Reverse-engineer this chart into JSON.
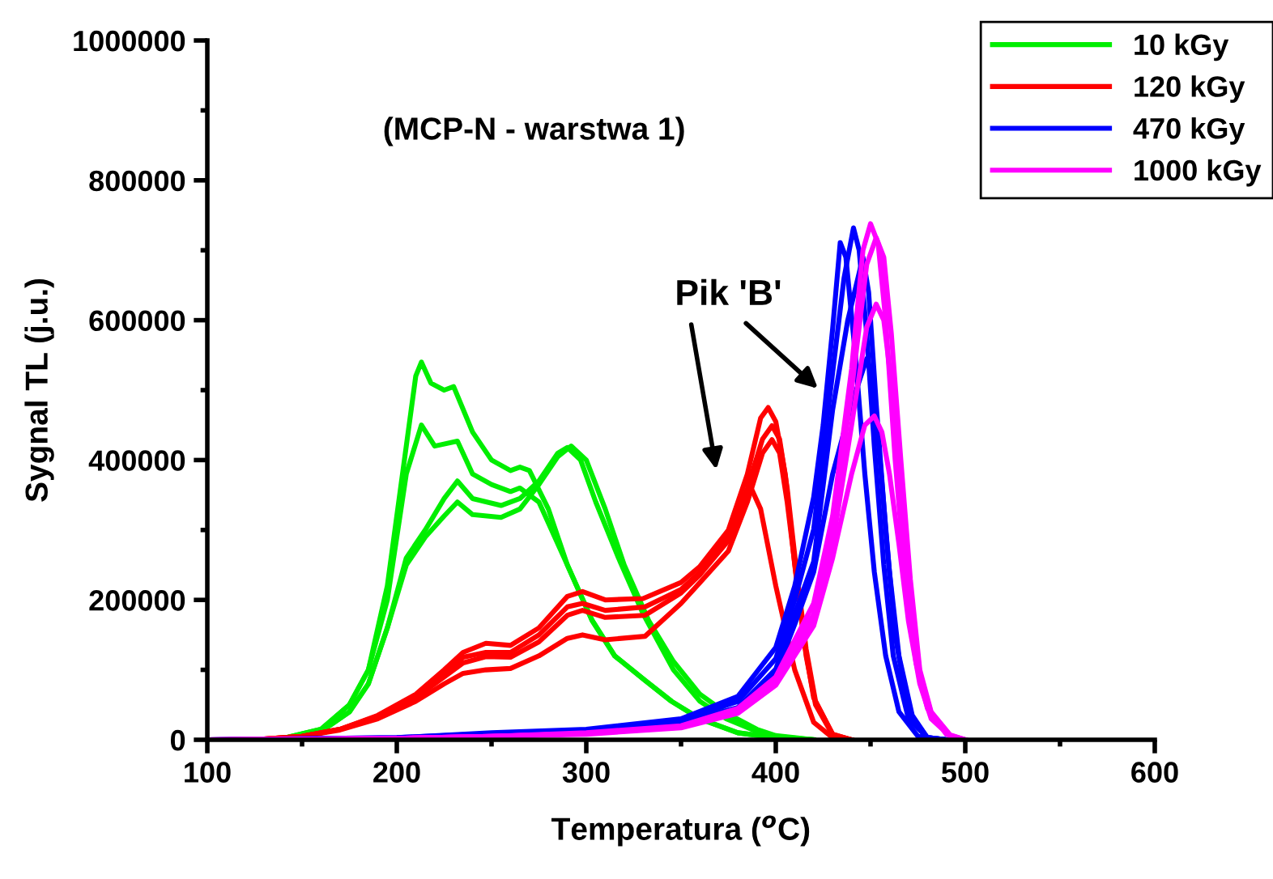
{
  "chart_data": {
    "type": "line",
    "xlabel": "Temperatura ($^{o}$C)",
    "ylabel": "Sygnal TL (j.u.)",
    "xlim": [
      100,
      600
    ],
    "xticks": [
      100,
      200,
      300,
      400,
      500,
      600
    ],
    "ylim": [
      0,
      1000000
    ],
    "yticks": [
      0,
      200000,
      400000,
      600000,
      800000,
      1000000
    ],
    "grid": false,
    "legend": "top right",
    "marker": "none",
    "line_style": "solid",
    "annotations": [
      "(MCP-N - warstwa 1)",
      "Pik 'B'"
    ],
    "series": [
      {
        "name": "10 kGy",
        "color": "#00ee00",
        "x": [
          120,
          140,
          160,
          175,
          185,
          195,
          205,
          210,
          213,
          218,
          225,
          230,
          240,
          250,
          260,
          265,
          270,
          280,
          290,
          303,
          315,
          331,
          345,
          360,
          380,
          400,
          420
        ],
        "values": [
          0,
          2000,
          15000,
          50000,
          100000,
          220000,
          420000,
          520000,
          540000,
          510000,
          500000,
          505000,
          440000,
          400000,
          385000,
          390000,
          385000,
          330000,
          250000,
          171000,
          120000,
          85000,
          55000,
          30000,
          10000,
          3000,
          0
        ]
      },
      {
        "color": "#00ee00",
        "x": [
          120,
          140,
          160,
          175,
          185,
          195,
          205,
          213,
          220,
          232,
          240,
          250,
          260,
          265,
          275,
          290,
          303,
          315,
          331,
          345,
          360,
          380,
          400,
          420
        ],
        "values": [
          0,
          2000,
          15000,
          50000,
          100000,
          200000,
          380000,
          450000,
          420000,
          427000,
          380000,
          365000,
          355000,
          360000,
          340000,
          250000,
          171000,
          120000,
          85000,
          55000,
          30000,
          10000,
          3000,
          0
        ]
      },
      {
        "color": "#00ee00",
        "x": [
          120,
          140,
          160,
          175,
          185,
          195,
          205,
          215,
          225,
          232,
          240,
          255,
          265,
          275,
          285,
          290,
          297,
          305,
          317,
          330,
          346,
          360,
          374,
          390,
          400,
          420
        ],
        "values": [
          0,
          2000,
          12000,
          40000,
          80000,
          160000,
          260000,
          300000,
          345000,
          370000,
          345000,
          335000,
          345000,
          370000,
          410000,
          418000,
          400000,
          340000,
          260000,
          180000,
          100000,
          55000,
          30000,
          12000,
          5000,
          0
        ]
      },
      {
        "color": "#00ee00",
        "x": [
          120,
          140,
          160,
          175,
          185,
          195,
          205,
          215,
          225,
          232,
          240,
          255,
          265,
          275,
          285,
          292,
          300,
          310,
          320,
          333,
          346,
          360,
          374,
          390,
          400,
          420
        ],
        "values": [
          0,
          2000,
          12000,
          40000,
          80000,
          160000,
          250000,
          290000,
          320000,
          340000,
          322000,
          318000,
          330000,
          365000,
          405000,
          420000,
          400000,
          330000,
          250000,
          170000,
          112000,
          65000,
          38000,
          15000,
          6000,
          0
        ]
      },
      {
        "name": "120 kGy",
        "color": "#ff0000",
        "x": [
          110,
          130,
          150,
          170,
          190,
          210,
          225,
          235,
          247,
          260,
          275,
          290,
          298,
          310,
          330,
          350,
          360,
          375,
          385,
          392,
          396,
          400,
          405,
          410,
          415,
          420,
          430,
          440
        ],
        "values": [
          0,
          1000,
          5000,
          15000,
          35000,
          65000,
          100000,
          125000,
          138000,
          135000,
          160000,
          205000,
          212000,
          200000,
          202000,
          225000,
          248000,
          300000,
          380000,
          460000,
          475000,
          455000,
          380000,
          250000,
          140000,
          60000,
          8000,
          0
        ]
      },
      {
        "color": "#ff0000",
        "x": [
          110,
          130,
          150,
          170,
          190,
          210,
          225,
          235,
          247,
          260,
          275,
          290,
          298,
          310,
          331,
          350,
          360,
          375,
          385,
          393,
          398,
          402,
          406,
          411,
          416,
          421,
          430,
          440
        ],
        "values": [
          0,
          1000,
          5000,
          15000,
          33000,
          60000,
          90000,
          110000,
          119000,
          118000,
          140000,
          178000,
          185000,
          175000,
          178000,
          210000,
          236000,
          285000,
          360000,
          430000,
          449000,
          430000,
          360000,
          240000,
          130000,
          55000,
          8000,
          0
        ]
      },
      {
        "color": "#ff0000",
        "x": [
          110,
          130,
          150,
          170,
          190,
          210,
          225,
          235,
          247,
          260,
          275,
          290,
          298,
          310,
          331,
          350,
          360,
          375,
          385,
          393,
          398,
          402,
          406,
          411,
          416,
          421,
          430,
          440
        ],
        "values": [
          0,
          1000,
          5000,
          14000,
          30000,
          55000,
          80000,
          95000,
          100000,
          102000,
          120000,
          145000,
          150000,
          143000,
          148000,
          195000,
          225000,
          270000,
          340000,
          410000,
          429000,
          410000,
          340000,
          230000,
          120000,
          50000,
          7000,
          0
        ]
      },
      {
        "color": "#ff0000",
        "x": [
          110,
          130,
          150,
          170,
          190,
          210,
          225,
          235,
          247,
          260,
          275,
          290,
          298,
          310,
          331,
          350,
          360,
          375,
          383,
          387,
          392,
          400,
          410,
          420,
          430,
          440
        ],
        "values": [
          0,
          1000,
          5000,
          15000,
          34000,
          62000,
          95000,
          118000,
          125000,
          125000,
          150000,
          190000,
          195000,
          185000,
          190000,
          215000,
          240000,
          290000,
          340000,
          360000,
          330000,
          220000,
          100000,
          25000,
          3000,
          0
        ]
      },
      {
        "name": "470 kGy",
        "color": "#0000ff",
        "x": [
          100,
          200,
          250,
          300,
          350,
          380,
          400,
          410,
          420,
          425,
          430,
          434,
          437,
          442,
          447,
          452,
          458,
          465,
          475,
          490
        ],
        "values": [
          0,
          3000,
          10000,
          15000,
          30000,
          62000,
          132000,
          220000,
          347000,
          450000,
          588000,
          711000,
          690000,
          550000,
          380000,
          240000,
          120000,
          40000,
          5000,
          0
        ]
      },
      {
        "color": "#0000ff",
        "x": [
          100,
          200,
          250,
          300,
          350,
          380,
          400,
          410,
          420,
          430,
          436,
          441,
          444,
          448,
          452,
          457,
          462,
          470,
          480,
          490
        ],
        "values": [
          0,
          3000,
          9000,
          14000,
          28000,
          55000,
          116000,
          200000,
          301000,
          525000,
          660000,
          732000,
          700000,
          580000,
          420000,
          250000,
          120000,
          30000,
          3000,
          0
        ]
      },
      {
        "color": "#0000ff",
        "x": [
          100,
          200,
          250,
          300,
          350,
          380,
          400,
          410,
          420,
          430,
          438,
          446,
          449,
          453,
          458,
          463,
          470,
          480,
          490
        ],
        "values": [
          0,
          2000,
          8000,
          13000,
          25000,
          46000,
          101000,
          180000,
          255000,
          472000,
          600000,
          690000,
          640000,
          480000,
          300000,
          150000,
          40000,
          3000,
          0
        ]
      },
      {
        "color": "#0000ff",
        "x": [
          100,
          200,
          250,
          300,
          350,
          380,
          400,
          410,
          420,
          430,
          440,
          448,
          451,
          455,
          460,
          465,
          472,
          480,
          490
        ],
        "values": [
          0,
          2000,
          7000,
          12000,
          24000,
          44000,
          95000,
          165000,
          240000,
          380000,
          480000,
          545000,
          520000,
          400000,
          240000,
          120000,
          35000,
          3000,
          0
        ]
      },
      {
        "name": "1000 kGy",
        "color": "#ff00ff",
        "x": [
          100,
          200,
          250,
          300,
          350,
          380,
          400,
          420,
          430,
          440,
          446,
          450,
          454,
          458,
          463,
          468,
          474,
          480,
          490,
          500
        ],
        "values": [
          0,
          2000,
          5000,
          10000,
          20000,
          45000,
          90000,
          195000,
          320000,
          530000,
          700000,
          738000,
          710000,
          600000,
          400000,
          240000,
          110000,
          45000,
          8000,
          0
        ]
      },
      {
        "color": "#ff00ff",
        "x": [
          100,
          200,
          250,
          300,
          350,
          380,
          400,
          420,
          430,
          440,
          448,
          453,
          457,
          461,
          466,
          471,
          476,
          482,
          492,
          500
        ],
        "values": [
          0,
          2000,
          5000,
          9000,
          19000,
          42000,
          86000,
          180000,
          300000,
          500000,
          680000,
          718000,
          690000,
          580000,
          400000,
          230000,
          100000,
          40000,
          7000,
          0
        ]
      },
      {
        "color": "#ff00ff",
        "x": [
          100,
          200,
          250,
          300,
          350,
          380,
          400,
          420,
          430,
          440,
          448,
          453,
          457,
          461,
          466,
          471,
          476,
          482,
          492,
          500
        ],
        "values": [
          0,
          2000,
          5000,
          9000,
          18000,
          40000,
          82000,
          170000,
          280000,
          450000,
          590000,
          623000,
          600000,
          510000,
          360000,
          210000,
          95000,
          38000,
          6000,
          0
        ]
      },
      {
        "color": "#ff00ff",
        "x": [
          100,
          200,
          250,
          300,
          350,
          380,
          400,
          420,
          430,
          440,
          447,
          452,
          456,
          460,
          465,
          470,
          476,
          482,
          492,
          500
        ],
        "values": [
          0,
          2000,
          5000,
          8000,
          17000,
          38000,
          78000,
          163000,
          260000,
          380000,
          450000,
          463000,
          440000,
          380000,
          280000,
          170000,
          80000,
          30000,
          5000,
          0
        ]
      }
    ]
  }
}
